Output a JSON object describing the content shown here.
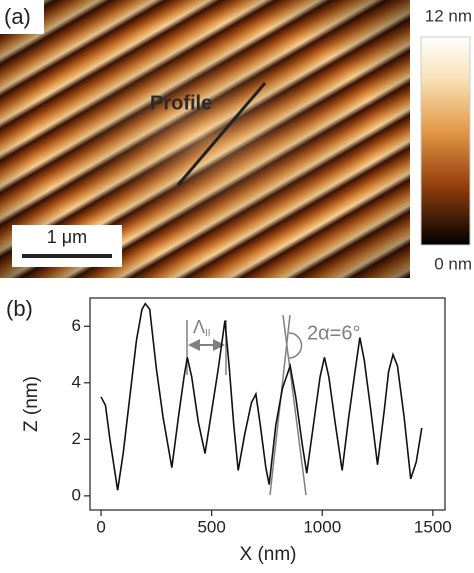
{
  "panel_a": {
    "label": "(a)",
    "annotation": "Profile",
    "scale_bar": "1 μm",
    "colorbar": {
      "max_label": "12 nm",
      "min_label": "0 nm"
    }
  },
  "chart_data": {
    "type": "line",
    "panel_label": "(b)",
    "x_label": "X (nm)",
    "y_label": "Z (nm)",
    "annotations": {
      "period": {
        "symbol": "Λ",
        "subscript": "II"
      },
      "angle": "2α=6°"
    },
    "color": "#111111",
    "xlim": [
      -50,
      1555
    ],
    "ylim": [
      -0.5,
      7
    ],
    "xticks": [
      0,
      500,
      1000,
      1500
    ],
    "yticks": [
      0,
      2,
      4,
      6
    ],
    "x": [
      0,
      20,
      40,
      75,
      100,
      130,
      160,
      185,
      200,
      220,
      250,
      280,
      320,
      350,
      375,
      390,
      410,
      440,
      470,
      500,
      530,
      560,
      580,
      600,
      620,
      650,
      680,
      700,
      720,
      745,
      760,
      790,
      820,
      855,
      880,
      910,
      930,
      960,
      990,
      1010,
      1030,
      1060,
      1090,
      1120,
      1150,
      1170,
      1190,
      1220,
      1250,
      1280,
      1300,
      1320,
      1340,
      1370,
      1400,
      1425,
      1450
    ],
    "values": [
      3.5,
      3.2,
      2.0,
      0.2,
      1.5,
      3.5,
      5.5,
      6.6,
      6.8,
      6.6,
      4.5,
      2.8,
      1.0,
      2.8,
      4.2,
      4.9,
      4.2,
      2.6,
      1.5,
      3.0,
      4.5,
      6.2,
      4.5,
      2.5,
      0.9,
      2.2,
      3.3,
      3.6,
      2.5,
      1.0,
      0.4,
      2.5,
      3.8,
      4.6,
      3.5,
      1.8,
      0.8,
      2.5,
      4.2,
      4.9,
      4.2,
      2.5,
      0.9,
      2.8,
      4.5,
      5.6,
      4.8,
      3.0,
      1.1,
      3.0,
      4.4,
      5.0,
      4.6,
      2.8,
      0.6,
      1.2,
      2.4
    ]
  }
}
